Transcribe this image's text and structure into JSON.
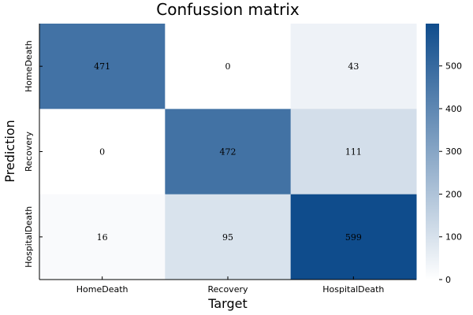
{
  "chart_data": {
    "type": "heatmap",
    "title": "Confussion matrix",
    "xlabel": "Target",
    "ylabel": "Prediction",
    "x_categories": [
      "HomeDeath",
      "Recovery",
      "HospitalDeath"
    ],
    "y_categories": [
      "HomeDeath",
      "Recovery",
      "HospitalDeath"
    ],
    "values": [
      [
        471,
        0,
        43
      ],
      [
        0,
        472,
        111
      ],
      [
        16,
        95,
        599
      ]
    ],
    "colorbar": {
      "min": 0,
      "max": 599,
      "ticks": [
        0,
        100,
        200,
        300,
        400,
        500
      ],
      "colors": [
        "#ffffff",
        "#0f4c8c"
      ]
    }
  }
}
